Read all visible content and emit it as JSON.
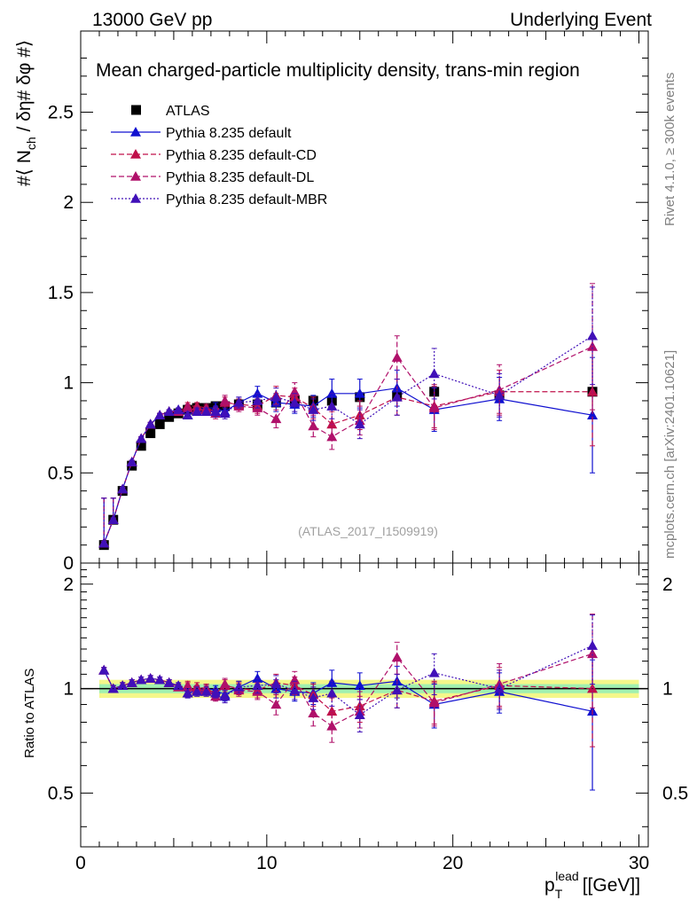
{
  "header": {
    "energy_label": "13000 GeV pp",
    "process_label": "Underlying Event"
  },
  "side_labels": {
    "rivet": "Rivet 4.1.0, ≥ 300k events",
    "source": "mcplots.cern.ch [arXiv:2401.10621]"
  },
  "colors": {
    "atlas": "#000000",
    "default": "#1010d0",
    "cd": "#c0104a",
    "dl": "#b0106a",
    "mbr": "#4010b8",
    "band_outer": "#f4f78a",
    "band_inner": "#a0f0b0",
    "ratio_line": "#1a7a3a"
  },
  "chart_data": {
    "type": "scatter",
    "title": "Mean charged-particle multiplicity density, trans-min region",
    "analysis_id": "(ATLAS_2017_I1509919)",
    "xlabel": "p_T^lead [[GeV]]",
    "xlabel_main": "p",
    "xlabel_sub": "T",
    "xlabel_sup": "lead",
    "xlabel_units": "[[GeV]]",
    "ylabel": "#⟨ N_ch / δη# δφ #⟩",
    "ylabel_parts": [
      "#⟨ N",
      "ch",
      " / δη# δφ #⟩"
    ],
    "ratio_ylabel": "Ratio to ATLAS",
    "xlim": [
      0,
      30.5
    ],
    "ylim": [
      0,
      2.95
    ],
    "ratio_ylim": [
      0.35,
      2.3
    ],
    "x_ticks": [
      0,
      10,
      20,
      30
    ],
    "x_tick_labels": [
      "0",
      "10",
      "20",
      "30"
    ],
    "y_ticks": [
      0,
      0.5,
      1,
      1.5,
      2,
      2.5
    ],
    "y_tick_labels": [
      "0",
      "0.5",
      "1",
      "1.5",
      "2",
      "2.5"
    ],
    "ratio_ticks": [
      0.5,
      1,
      2
    ],
    "ratio_tick_labels": [
      "0.5",
      "1",
      "2"
    ],
    "x": [
      1.25,
      1.75,
      2.25,
      2.75,
      3.25,
      3.75,
      4.25,
      4.75,
      5.25,
      5.75,
      6.25,
      6.75,
      7.25,
      7.75,
      8.5,
      9.5,
      10.5,
      11.5,
      12.5,
      13.5,
      15.0,
      17.0,
      19.0,
      22.5,
      27.5
    ],
    "atlas": [
      0.1,
      0.24,
      0.4,
      0.54,
      0.65,
      0.72,
      0.77,
      0.81,
      0.83,
      0.85,
      0.86,
      0.86,
      0.87,
      0.87,
      0.88,
      0.88,
      0.89,
      0.9,
      0.9,
      0.9,
      0.92,
      0.93,
      0.95,
      0.93,
      0.95
    ],
    "series": [
      {
        "name": "Pythia 8.235 default",
        "key": "default",
        "values": [
          0.11,
          0.24,
          0.41,
          0.56,
          0.69,
          0.77,
          0.82,
          0.84,
          0.85,
          0.82,
          0.85,
          0.86,
          0.86,
          0.84,
          0.89,
          0.94,
          0.89,
          0.88,
          0.87,
          0.94,
          0.94,
          0.97,
          0.85,
          0.91,
          0.82
        ],
        "errors": [
          0.01,
          0.01,
          0.01,
          0.01,
          0.01,
          0.01,
          0.01,
          0.01,
          0.01,
          0.02,
          0.02,
          0.02,
          0.03,
          0.03,
          0.03,
          0.04,
          0.05,
          0.05,
          0.06,
          0.08,
          0.08,
          0.1,
          0.12,
          0.12,
          0.32
        ],
        "ratio": [
          1.13,
          1.0,
          1.02,
          1.04,
          1.06,
          1.07,
          1.06,
          1.04,
          1.02,
          0.97,
          0.99,
          1.0,
          0.99,
          0.96,
          1.01,
          1.07,
          1.0,
          0.98,
          0.97,
          1.04,
          1.02,
          1.05,
          0.9,
          0.98,
          0.86
        ],
        "ratio_errors": [
          0.02,
          0.02,
          0.02,
          0.02,
          0.02,
          0.02,
          0.02,
          0.02,
          0.02,
          0.03,
          0.03,
          0.03,
          0.03,
          0.04,
          0.04,
          0.05,
          0.06,
          0.06,
          0.07,
          0.09,
          0.09,
          0.11,
          0.13,
          0.13,
          0.35
        ],
        "style": "solid"
      },
      {
        "name": "Pythia 8.235 default-CD",
        "key": "cd",
        "values": [
          0.11,
          0.24,
          0.41,
          0.56,
          0.69,
          0.77,
          0.82,
          0.84,
          0.84,
          0.87,
          0.87,
          0.86,
          0.84,
          0.89,
          0.88,
          0.87,
          0.93,
          0.92,
          0.86,
          0.77,
          0.82,
          0.92,
          0.87,
          0.95,
          0.95
        ],
        "errors": [
          0.01,
          0.01,
          0.01,
          0.01,
          0.01,
          0.01,
          0.01,
          0.01,
          0.01,
          0.02,
          0.02,
          0.02,
          0.03,
          0.03,
          0.03,
          0.04,
          0.05,
          0.05,
          0.06,
          0.07,
          0.08,
          0.1,
          0.12,
          0.12,
          0.3
        ],
        "ratio": [
          1.13,
          1.0,
          1.02,
          1.04,
          1.06,
          1.07,
          1.06,
          1.04,
          1.01,
          1.02,
          1.01,
          1.0,
          0.97,
          1.02,
          1.0,
          0.99,
          1.04,
          1.02,
          0.96,
          0.86,
          0.89,
          0.99,
          0.92,
          1.02,
          1.0
        ],
        "ratio_errors": [
          0.02,
          0.02,
          0.02,
          0.02,
          0.02,
          0.02,
          0.02,
          0.02,
          0.02,
          0.03,
          0.03,
          0.03,
          0.03,
          0.04,
          0.04,
          0.05,
          0.06,
          0.06,
          0.07,
          0.08,
          0.09,
          0.11,
          0.13,
          0.13,
          0.32
        ],
        "style": "dashed"
      },
      {
        "name": "Pythia 8.235 default-DL",
        "key": "dl",
        "values": [
          0.11,
          0.24,
          0.41,
          0.56,
          0.69,
          0.77,
          0.82,
          0.84,
          0.84,
          0.86,
          0.85,
          0.85,
          0.83,
          0.9,
          0.87,
          0.86,
          0.8,
          0.95,
          0.76,
          0.7,
          0.79,
          1.14,
          0.86,
          0.96,
          1.2
        ],
        "errors": [
          0.01,
          0.01,
          0.01,
          0.01,
          0.01,
          0.01,
          0.01,
          0.01,
          0.01,
          0.02,
          0.02,
          0.02,
          0.03,
          0.03,
          0.03,
          0.04,
          0.05,
          0.05,
          0.06,
          0.07,
          0.08,
          0.12,
          0.12,
          0.14,
          0.35
        ],
        "ratio": [
          1.13,
          1.0,
          1.02,
          1.04,
          1.06,
          1.07,
          1.06,
          1.04,
          1.01,
          1.01,
          0.99,
          0.99,
          0.95,
          1.03,
          0.99,
          0.98,
          0.9,
          1.06,
          0.85,
          0.78,
          0.86,
          1.23,
          0.91,
          1.03,
          1.26
        ],
        "ratio_errors": [
          0.02,
          0.02,
          0.02,
          0.02,
          0.02,
          0.02,
          0.02,
          0.02,
          0.02,
          0.03,
          0.03,
          0.03,
          0.03,
          0.04,
          0.04,
          0.05,
          0.06,
          0.06,
          0.07,
          0.08,
          0.09,
          0.13,
          0.13,
          0.15,
          0.38
        ],
        "style": "dashed"
      },
      {
        "name": "Pythia 8.235 default-MBR",
        "key": "mbr",
        "values": [
          0.11,
          0.24,
          0.41,
          0.56,
          0.69,
          0.77,
          0.82,
          0.84,
          0.85,
          0.82,
          0.84,
          0.84,
          0.84,
          0.83,
          0.89,
          0.9,
          0.92,
          0.89,
          0.85,
          0.87,
          0.77,
          0.92,
          1.05,
          0.93,
          1.26
        ],
        "errors": [
          0.01,
          0.01,
          0.01,
          0.01,
          0.01,
          0.01,
          0.01,
          0.01,
          0.01,
          0.02,
          0.02,
          0.02,
          0.03,
          0.03,
          0.03,
          0.04,
          0.05,
          0.05,
          0.06,
          0.07,
          0.08,
          0.1,
          0.14,
          0.12,
          0.27
        ],
        "ratio": [
          1.13,
          1.0,
          1.02,
          1.04,
          1.06,
          1.07,
          1.06,
          1.04,
          1.02,
          0.97,
          0.98,
          0.98,
          0.97,
          0.95,
          1.01,
          1.02,
          1.03,
          0.99,
          0.94,
          0.97,
          0.84,
          0.99,
          1.11,
          1.0,
          1.33
        ],
        "ratio_errors": [
          0.02,
          0.02,
          0.02,
          0.02,
          0.02,
          0.02,
          0.02,
          0.02,
          0.02,
          0.03,
          0.03,
          0.03,
          0.03,
          0.04,
          0.04,
          0.05,
          0.06,
          0.06,
          0.07,
          0.08,
          0.09,
          0.11,
          0.15,
          0.13,
          0.3
        ],
        "style": "dotted"
      }
    ],
    "legend": [
      "ATLAS",
      "Pythia 8.235 default",
      "Pythia 8.235 default-CD",
      "Pythia 8.235 default-DL",
      "Pythia 8.235 default-MBR"
    ],
    "legend_position": "top-left",
    "ratio_band_inner": 0.03,
    "ratio_band_outer": 0.06
  }
}
